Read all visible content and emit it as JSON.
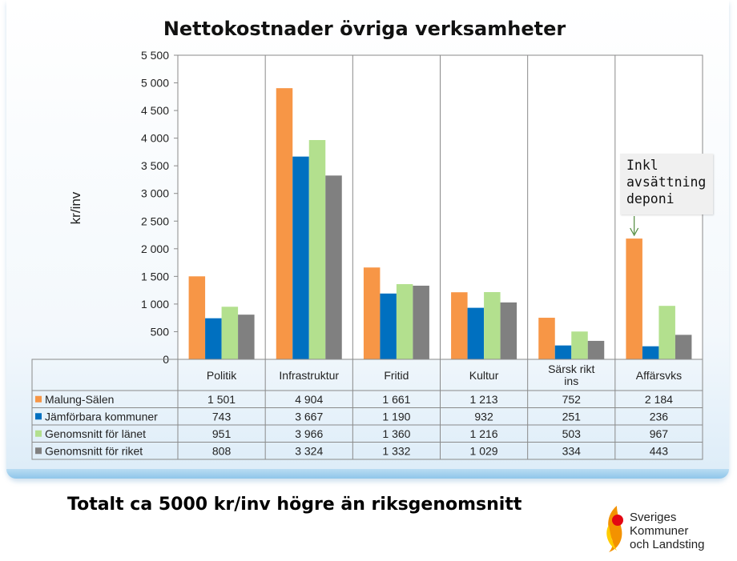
{
  "chart_data": {
    "type": "bar",
    "title": "Nettokostnader övriga verksamheter",
    "ylabel": "kr/inv",
    "ylim": [
      0,
      5500
    ],
    "yticks": [
      "0",
      "500",
      "1 000",
      "1 500",
      "2 000",
      "2 500",
      "3 000",
      "3 500",
      "4 000",
      "4 500",
      "5 000",
      "5 500"
    ],
    "grid": "vertical category separators",
    "legend": "data table below chart",
    "categories": [
      "Politik",
      "Infrastruktur",
      "Fritid",
      "Kultur",
      "Särsk rikt ins",
      "Affärsvks"
    ],
    "category_labels": [
      [
        "Politik"
      ],
      [
        "Infrastruktur"
      ],
      [
        "Fritid"
      ],
      [
        "Kultur"
      ],
      [
        "Särsk rikt",
        "ins"
      ],
      [
        "Affärsvks"
      ]
    ],
    "series": [
      {
        "name": "Malung-Sälen",
        "color": "#F79646",
        "values": [
          1501,
          4904,
          1661,
          1213,
          752,
          2184
        ],
        "labels": [
          "1 501",
          "4 904",
          "1 661",
          "1 213",
          "752",
          "2 184"
        ]
      },
      {
        "name": "Jämförbara kommuner",
        "color": "#0070C0",
        "values": [
          743,
          3667,
          1190,
          932,
          251,
          236
        ],
        "labels": [
          "743",
          "3 667",
          "1 190",
          "932",
          "251",
          "236"
        ]
      },
      {
        "name": "Genomsnitt för länet",
        "color": "#B3E08E",
        "values": [
          951,
          3966,
          1360,
          1216,
          503,
          967
        ],
        "labels": [
          "951",
          "3 966",
          "1 360",
          "1 216",
          "503",
          "967"
        ]
      },
      {
        "name": "Genomsnitt för riket",
        "color": "#808080",
        "values": [
          808,
          3324,
          1332,
          1029,
          334,
          443
        ],
        "labels": [
          "808",
          "3 324",
          "1 332",
          "1 029",
          "334",
          "443"
        ]
      }
    ],
    "annotation": "Inkl\navsättning\ndeponi"
  },
  "footer": "Totalt ca 5000 kr/inv högre än riksgenomsnitt",
  "logo": {
    "text": "Sveriges\nKommuner\noch Landsting",
    "colors": {
      "orange": "#F39200",
      "red": "#E30613",
      "yellow": "#FFCC00"
    }
  }
}
